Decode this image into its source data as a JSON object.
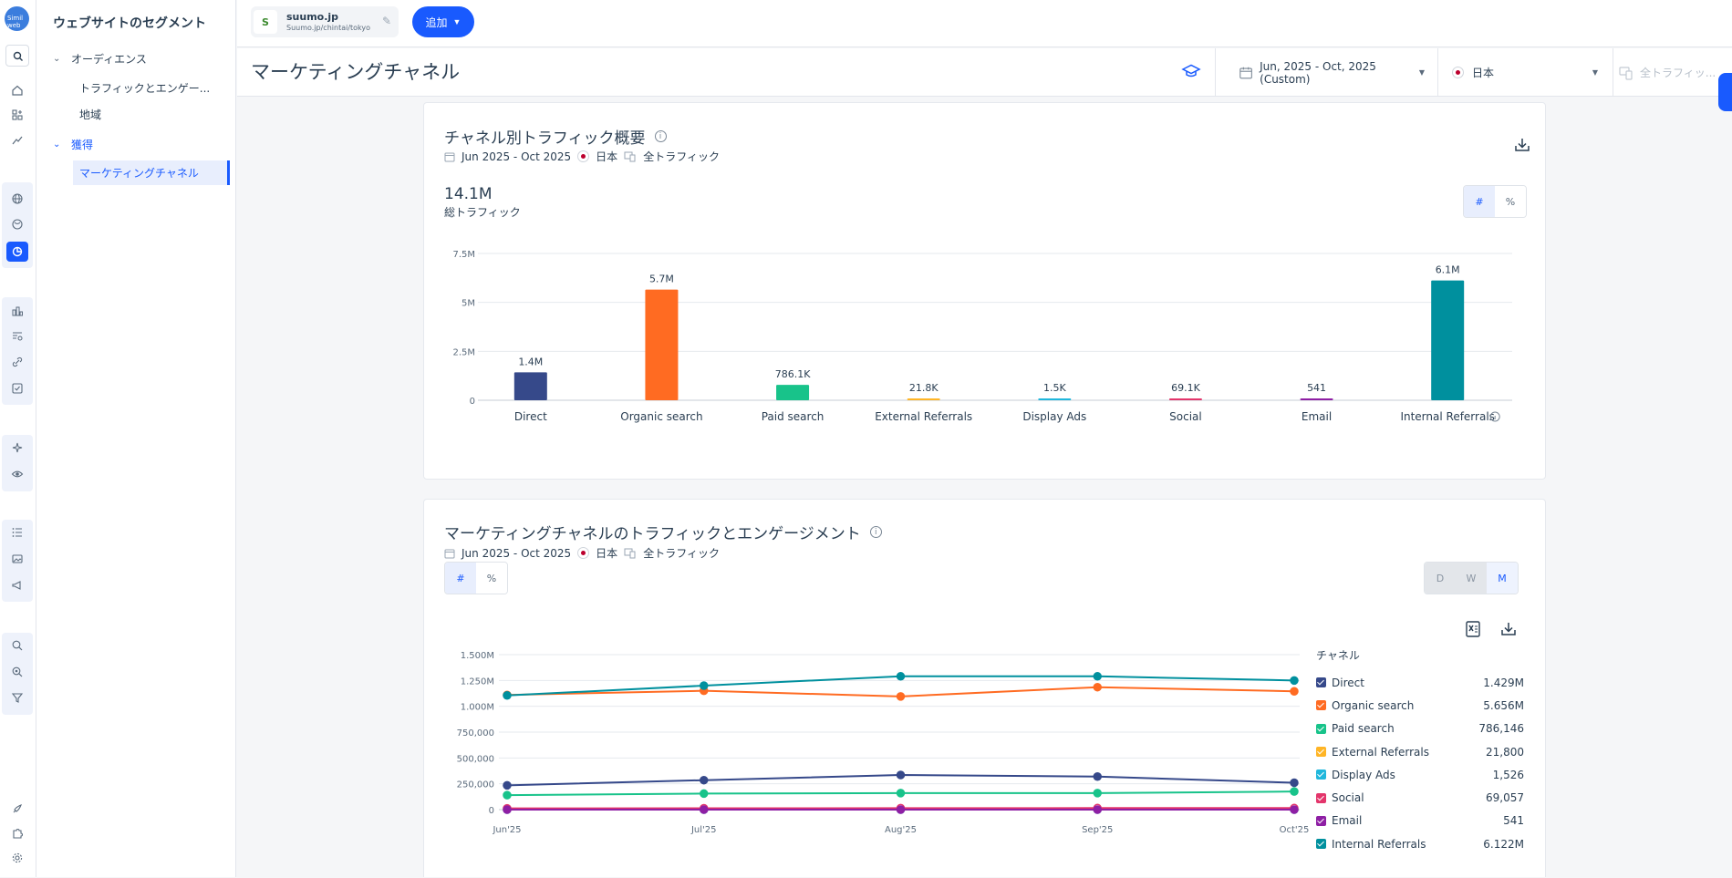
{
  "app": {
    "logo_text": "Simil web"
  },
  "sidebar": {
    "title": "ウェブサイトのセグメント",
    "sections": [
      {
        "label": "オーディエンス",
        "items": [
          "トラフィックとエンゲー...",
          "地域"
        ]
      },
      {
        "label": "獲得",
        "items": [
          "マーケティングチャネル"
        ]
      }
    ]
  },
  "topbar": {
    "site_name": "suumo.jp",
    "site_path": "Suumo.jp/chintai/tokyo",
    "favicon_text": "S",
    "add_label": "追加"
  },
  "header": {
    "title": "マーケティングチャネル",
    "date_range": "Jun, 2025 - Oct, 2025 (Custom)",
    "country": "日本",
    "traffic": "全トラフィッ..."
  },
  "colors": {
    "accent": "#195afe",
    "direct": "#36498a",
    "organic": "#ff6b22",
    "paid": "#18c38a",
    "external": "#ffb526",
    "display": "#20b7dc",
    "social": "#e3356b",
    "email": "#8e1fa4",
    "internal": "#00909e"
  },
  "overview": {
    "title": "チャネル別トラフィック概要",
    "date": "Jun 2025 - Oct 2025",
    "country": "日本",
    "traffic": "全トラフィック",
    "total_value": "14.1M",
    "total_label": "総トラフィック",
    "toggle": [
      "#",
      "%"
    ],
    "bar_labels": [
      "1.4M",
      "5.7M",
      "786.1K",
      "21.8K",
      "1.5K",
      "69.1K",
      "541",
      "6.1M"
    ]
  },
  "engagement": {
    "title": "マーケティングチャネルのトラフィックとエンゲージメント",
    "date": "Jun 2025 - Oct 2025",
    "country": "日本",
    "traffic": "全トラフィック",
    "toggle": [
      "#",
      "%"
    ],
    "granularity": [
      "D",
      "W",
      "M"
    ],
    "legend_title": "チャネル",
    "legend": [
      {
        "name": "Direct",
        "value": "1.429M"
      },
      {
        "name": "Organic search",
        "value": "5.656M"
      },
      {
        "name": "Paid search",
        "value": "786,146"
      },
      {
        "name": "External Referrals",
        "value": "21,800"
      },
      {
        "name": "Display Ads",
        "value": "1,526"
      },
      {
        "name": "Social",
        "value": "69,057"
      },
      {
        "name": "Email",
        "value": "541"
      },
      {
        "name": "Internal Referrals",
        "value": "6.122M"
      }
    ]
  },
  "chart_data": [
    {
      "type": "bar",
      "categories": [
        "Direct",
        "Organic search",
        "Paid search",
        "External Referrals",
        "Display Ads",
        "Social",
        "Email",
        "Internal Referrals"
      ],
      "values": [
        1429000,
        5656000,
        786146,
        21800,
        1526,
        69057,
        541,
        6122000
      ],
      "ylim": [
        0,
        7500000
      ],
      "yticks": [
        "0",
        "2.5M",
        "5M",
        "7.5M"
      ],
      "grid": true
    },
    {
      "type": "line",
      "x": [
        "Jun'25",
        "Jul'25",
        "Aug'25",
        "Sep'25",
        "Oct'25"
      ],
      "ylim": [
        0,
        1500000
      ],
      "yticks": [
        "0",
        "250,000",
        "500,000",
        "750,000",
        "1.000M",
        "1.250M",
        "1.500M"
      ],
      "series": [
        {
          "name": "Direct",
          "values": [
            235000,
            285000,
            335000,
            320000,
            260000
          ]
        },
        {
          "name": "Organic search",
          "values": [
            1110000,
            1150000,
            1095000,
            1185000,
            1145000
          ]
        },
        {
          "name": "Paid search",
          "values": [
            140000,
            155000,
            160000,
            160000,
            175000
          ]
        },
        {
          "name": "External Referrals",
          "values": [
            4000,
            4200,
            4500,
            4500,
            4600
          ]
        },
        {
          "name": "Display Ads",
          "values": [
            300,
            300,
            300,
            300,
            300
          ]
        },
        {
          "name": "Social",
          "values": [
            12000,
            13000,
            14000,
            15000,
            15000
          ]
        },
        {
          "name": "Email",
          "values": [
            100,
            100,
            120,
            110,
            110
          ]
        },
        {
          "name": "Internal Referrals",
          "values": [
            1105000,
            1200000,
            1290000,
            1290000,
            1250000
          ]
        }
      ],
      "legend_position": "right",
      "grid": true
    }
  ]
}
